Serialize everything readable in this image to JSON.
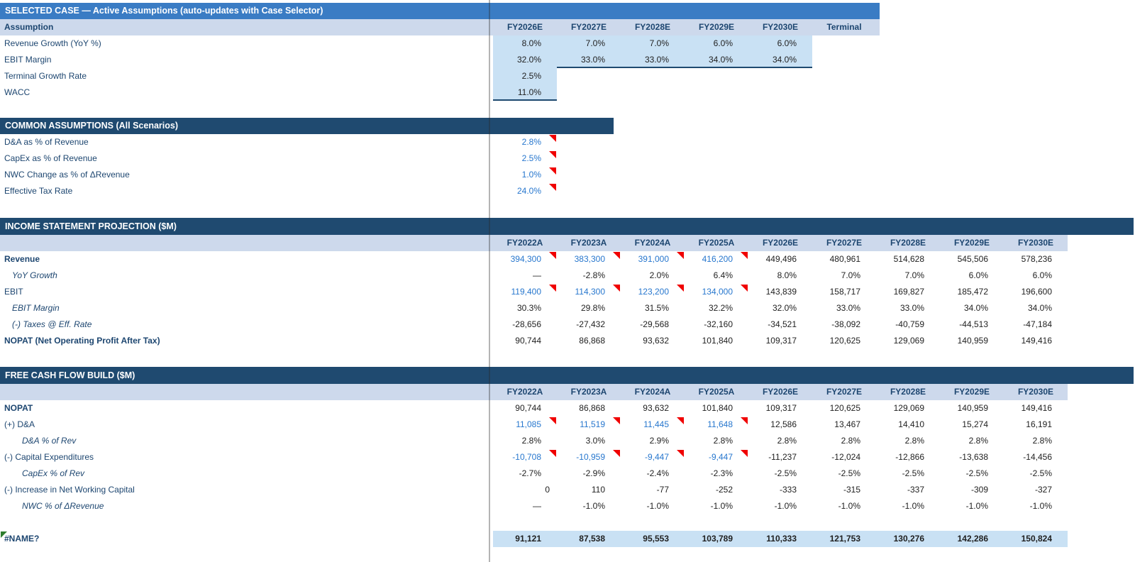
{
  "colors": {
    "accent_bar": "#3A7CC4",
    "section_bar": "#1F4A70",
    "header_row_bg": "#CDD9EC",
    "input_highlight_bg": "#C9E1F4",
    "input_text_blue": "#2777CE",
    "label_text_navy": "#1D4670",
    "comment_indicator_red": "#F00000",
    "error_indicator_green": "#2D7D2D"
  },
  "selected_case": {
    "title": "SELECTED CASE — Active Assumptions (auto-updates with Case Selector)",
    "corner_label": "Assumption",
    "columns": [
      "FY2026E",
      "FY2027E",
      "FY2028E",
      "FY2029E",
      "FY2030E",
      "Terminal"
    ],
    "rows": [
      {
        "label": "Revenue Growth (YoY %)",
        "values": [
          "8.0%",
          "7.0%",
          "7.0%",
          "6.0%",
          "6.0%",
          ""
        ],
        "highlight": 5,
        "underline_cols": []
      },
      {
        "label": "EBIT Margin",
        "values": [
          "32.0%",
          "33.0%",
          "33.0%",
          "34.0%",
          "34.0%",
          ""
        ],
        "highlight": 5,
        "underline_cols": [
          1,
          2,
          3,
          4
        ]
      },
      {
        "label": "Terminal Growth Rate",
        "values": [
          "2.5%",
          "",
          "",
          "",
          "",
          ""
        ],
        "highlight": 1,
        "underline_cols": []
      },
      {
        "label": "WACC",
        "values": [
          "11.0%",
          "",
          "",
          "",
          "",
          ""
        ],
        "highlight": 1,
        "underline_cols": [
          0
        ]
      }
    ]
  },
  "common": {
    "title": "COMMON ASSUMPTIONS (All Scenarios)",
    "rows": [
      {
        "label": "D&A as % of Revenue",
        "value": "2.8%"
      },
      {
        "label": "CapEx as % of Revenue",
        "value": "2.5%"
      },
      {
        "label": "NWC Change as % of ΔRevenue",
        "value": "1.0%"
      },
      {
        "label": "Effective Tax Rate",
        "value": "24.0%"
      }
    ]
  },
  "income": {
    "title": "INCOME STATEMENT PROJECTION ($M)",
    "columns": [
      "FY2022A",
      "FY2023A",
      "FY2024A",
      "FY2025A",
      "FY2026E",
      "FY2027E",
      "FY2028E",
      "FY2029E",
      "FY2030E"
    ],
    "rows": [
      {
        "label": "Revenue",
        "bold": true,
        "blue": 4,
        "comments": 4,
        "values": [
          "394,300",
          "383,300",
          "391,000",
          "416,200",
          "449,496",
          "480,961",
          "514,628",
          "545,506",
          "578,236"
        ]
      },
      {
        "label": "YoY Growth",
        "italic": true,
        "indent": 1,
        "values": [
          "—",
          "-2.8%",
          "2.0%",
          "6.4%",
          "8.0%",
          "7.0%",
          "7.0%",
          "6.0%",
          "6.0%"
        ]
      },
      {
        "label": "EBIT",
        "blue": 4,
        "comments": 4,
        "values": [
          "119,400",
          "114,300",
          "123,200",
          "134,000",
          "143,839",
          "158,717",
          "169,827",
          "185,472",
          "196,600"
        ]
      },
      {
        "label": "EBIT Margin",
        "italic": true,
        "indent": 1,
        "values": [
          "30.3%",
          "29.8%",
          "31.5%",
          "32.2%",
          "32.0%",
          "33.0%",
          "33.0%",
          "34.0%",
          "34.0%"
        ]
      },
      {
        "label": "(-) Taxes @ Eff. Rate",
        "italic": true,
        "indent": 1,
        "values": [
          "-28,656",
          "-27,432",
          "-29,568",
          "-32,160",
          "-34,521",
          "-38,092",
          "-40,759",
          "-44,513",
          "-47,184"
        ]
      },
      {
        "label": "NOPAT (Net Operating Profit After Tax)",
        "bold": true,
        "values": [
          "90,744",
          "86,868",
          "93,632",
          "101,840",
          "109,317",
          "120,625",
          "129,069",
          "140,959",
          "149,416"
        ]
      }
    ]
  },
  "fcf": {
    "title": "FREE CASH FLOW BUILD ($M)",
    "columns": [
      "FY2022A",
      "FY2023A",
      "FY2024A",
      "FY2025A",
      "FY2026E",
      "FY2027E",
      "FY2028E",
      "FY2029E",
      "FY2030E"
    ],
    "rows": [
      {
        "label": "NOPAT",
        "bold": true,
        "values": [
          "90,744",
          "86,868",
          "93,632",
          "101,840",
          "109,317",
          "120,625",
          "129,069",
          "140,959",
          "149,416"
        ]
      },
      {
        "label": "(+) D&A",
        "blue": 4,
        "comments": 4,
        "values": [
          "11,085",
          "11,519",
          "11,445",
          "11,648",
          "12,586",
          "13,467",
          "14,410",
          "15,274",
          "16,191"
        ]
      },
      {
        "label": "D&A % of Rev",
        "italic": true,
        "indent": 2,
        "values": [
          "2.8%",
          "3.0%",
          "2.9%",
          "2.8%",
          "2.8%",
          "2.8%",
          "2.8%",
          "2.8%",
          "2.8%"
        ]
      },
      {
        "label": "(-) Capital Expenditures",
        "blue": 4,
        "comments": 4,
        "values": [
          "-10,708",
          "-10,959",
          "-9,447",
          "-9,447",
          "-11,237",
          "-12,024",
          "-12,866",
          "-13,638",
          "-14,456"
        ]
      },
      {
        "label": "CapEx % of Rev",
        "italic": true,
        "indent": 2,
        "values": [
          "-2.7%",
          "-2.9%",
          "-2.4%",
          "-2.3%",
          "-2.5%",
          "-2.5%",
          "-2.5%",
          "-2.5%",
          "-2.5%"
        ]
      },
      {
        "label": "(-) Increase in Net Working Capital",
        "tight_first": true,
        "values": [
          "0",
          "110",
          "-77",
          "-252",
          "-333",
          "-315",
          "-337",
          "-309",
          "-327"
        ]
      },
      {
        "label": "NWC % of ΔRevenue",
        "italic": true,
        "indent": 2,
        "values": [
          "—",
          "-1.0%",
          "-1.0%",
          "-1.0%",
          "-1.0%",
          "-1.0%",
          "-1.0%",
          "-1.0%",
          "-1.0%"
        ]
      },
      {
        "spacer": true
      },
      {
        "label": "#NAME?",
        "bold": true,
        "error": true,
        "row_highlight": true,
        "values": [
          "91,121",
          "87,538",
          "95,553",
          "103,789",
          "110,333",
          "121,753",
          "130,276",
          "142,286",
          "150,824"
        ]
      }
    ]
  }
}
